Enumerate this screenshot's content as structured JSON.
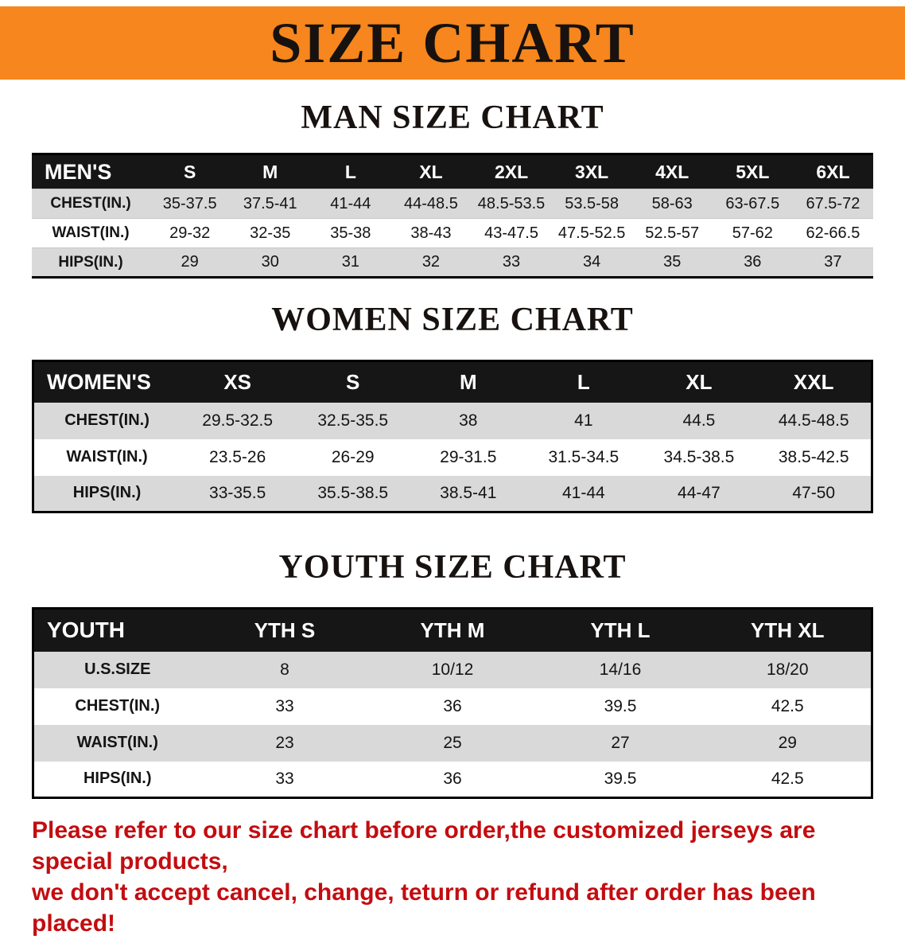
{
  "banner": {
    "title": "SIZE CHART"
  },
  "sections": {
    "men": {
      "heading": "MAN SIZE CHART",
      "table": {
        "header": [
          "MEN'S",
          "S",
          "M",
          "L",
          "XL",
          "2XL",
          "3XL",
          "4XL",
          "5XL",
          "6XL"
        ],
        "rows": [
          [
            "CHEST(IN.)",
            "35-37.5",
            "37.5-41",
            "41-44",
            "44-48.5",
            "48.5-53.5",
            "53.5-58",
            "58-63",
            "63-67.5",
            "67.5-72"
          ],
          [
            "WAIST(IN.)",
            "29-32",
            "32-35",
            "35-38",
            "38-43",
            "43-47.5",
            "47.5-52.5",
            "52.5-57",
            "57-62",
            "62-66.5"
          ],
          [
            "HIPS(IN.)",
            "29",
            "30",
            "31",
            "32",
            "33",
            "34",
            "35",
            "36",
            "37"
          ]
        ]
      }
    },
    "women": {
      "heading": "WOMEN SIZE CHART",
      "table": {
        "header": [
          "WOMEN'S",
          "XS",
          "S",
          "M",
          "L",
          "XL",
          "XXL"
        ],
        "rows": [
          [
            "CHEST(IN.)",
            "29.5-32.5",
            "32.5-35.5",
            "38",
            "41",
            "44.5",
            "44.5-48.5"
          ],
          [
            "WAIST(IN.)",
            "23.5-26",
            "26-29",
            "29-31.5",
            "31.5-34.5",
            "34.5-38.5",
            "38.5-42.5"
          ],
          [
            "HIPS(IN.)",
            "33-35.5",
            "35.5-38.5",
            "38.5-41",
            "41-44",
            "44-47",
            "47-50"
          ]
        ]
      }
    },
    "youth": {
      "heading": "YOUTH SIZE CHART",
      "table": {
        "header": [
          "YOUTH",
          "YTH S",
          "YTH M",
          "YTH L",
          "YTH XL"
        ],
        "rows": [
          [
            "U.S.SIZE",
            "8",
            "10/12",
            "14/16",
            "18/20"
          ],
          [
            "CHEST(IN.)",
            "33",
            "36",
            "39.5",
            "42.5"
          ],
          [
            "WAIST(IN.)",
            "23",
            "25",
            "27",
            "29"
          ],
          [
            "HIPS(IN.)",
            "33",
            "36",
            "39.5",
            "42.5"
          ]
        ]
      }
    }
  },
  "footer": {
    "line1": "Please refer to our size chart before order,the customized jerseys are special products,",
    "line2": "we don't accept cancel, change, teturn or refund after order has been placed!"
  }
}
